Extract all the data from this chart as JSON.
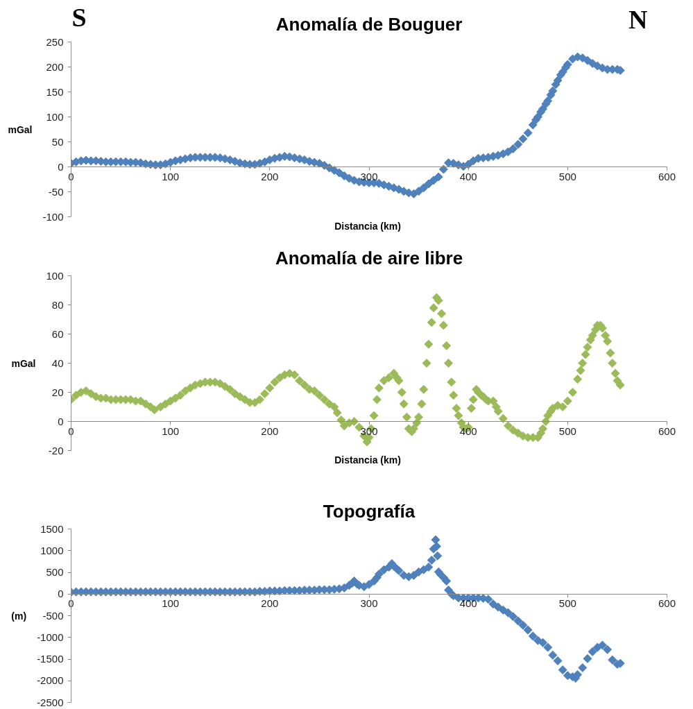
{
  "chart_data": [
    {
      "type": "scatter",
      "title": "Anomalía de Bouguer",
      "xlabel": "Distancia  (km)",
      "ylabel": "mGal",
      "annotations": [
        "S",
        "N"
      ],
      "marker": "diamond",
      "xlim": [
        0,
        600
      ],
      "xticks": [
        0,
        100,
        200,
        300,
        400,
        500,
        600
      ],
      "ylim": [
        -100,
        250
      ],
      "yticks": [
        -100,
        -50,
        0,
        50,
        100,
        150,
        200,
        250
      ],
      "x": [
        0,
        5,
        10,
        15,
        20,
        25,
        30,
        35,
        40,
        45,
        50,
        55,
        60,
        65,
        70,
        75,
        80,
        85,
        90,
        95,
        100,
        105,
        110,
        115,
        120,
        125,
        130,
        135,
        140,
        145,
        150,
        155,
        160,
        165,
        170,
        175,
        180,
        185,
        190,
        195,
        200,
        205,
        210,
        215,
        220,
        225,
        230,
        235,
        240,
        245,
        250,
        255,
        260,
        265,
        270,
        275,
        280,
        285,
        290,
        295,
        300,
        305,
        310,
        315,
        320,
        325,
        330,
        335,
        340,
        345,
        350,
        355,
        360,
        365,
        370,
        375,
        380,
        385,
        390,
        395,
        400,
        405,
        410,
        415,
        420,
        425,
        430,
        435,
        440,
        445,
        450,
        455,
        460,
        465,
        468,
        470,
        473,
        475,
        478,
        480,
        483,
        485,
        488,
        490,
        493,
        495,
        498,
        500,
        505,
        510,
        515,
        520,
        525,
        530,
        535,
        540,
        545,
        550,
        553
      ],
      "series": [
        {
          "color": "#4f81bd",
          "values": [
            7,
            10,
            12,
            13,
            12,
            12,
            11,
            10,
            10,
            10,
            10,
            10,
            9,
            9,
            8,
            6,
            5,
            4,
            4,
            6,
            9,
            12,
            14,
            16,
            18,
            19,
            19,
            19,
            19,
            19,
            18,
            16,
            14,
            11,
            8,
            6,
            5,
            5,
            7,
            10,
            14,
            17,
            19,
            21,
            20,
            18,
            16,
            14,
            11,
            9,
            7,
            3,
            -2,
            -7,
            -12,
            -18,
            -23,
            -27,
            -30,
            -31,
            -32,
            -32,
            -33,
            -36,
            -39,
            -42,
            -45,
            -49,
            -52,
            -54,
            -49,
            -42,
            -34,
            -27,
            -20,
            -5,
            8,
            7,
            4,
            1,
            5,
            12,
            17,
            18,
            19,
            21,
            23,
            26,
            30,
            36,
            45,
            56,
            68,
            84,
            94,
            100,
            110,
            116,
            126,
            132,
            144,
            152,
            165,
            173,
            184,
            190,
            199,
            205,
            216,
            220,
            218,
            213,
            207,
            202,
            198,
            195,
            195,
            195,
            193
          ]
        }
      ]
    },
    {
      "type": "scatter",
      "title": "Anomalía de aire libre",
      "xlabel": "Distancia  (km)",
      "ylabel": "mGal",
      "marker": "diamond",
      "xlim": [
        0,
        600
      ],
      "xticks": [
        0,
        100,
        200,
        300,
        400,
        500,
        600
      ],
      "ylim": [
        -20,
        100
      ],
      "yticks": [
        -20,
        0,
        20,
        40,
        60,
        80,
        100
      ],
      "x": [
        0,
        5,
        10,
        15,
        20,
        25,
        30,
        35,
        40,
        45,
        50,
        55,
        60,
        65,
        70,
        75,
        80,
        84,
        90,
        95,
        100,
        105,
        110,
        115,
        120,
        125,
        130,
        135,
        140,
        145,
        150,
        155,
        160,
        165,
        170,
        175,
        180,
        185,
        190,
        195,
        200,
        205,
        210,
        215,
        220,
        225,
        230,
        235,
        240,
        245,
        250,
        255,
        260,
        265,
        268,
        272,
        275,
        280,
        285,
        290,
        295,
        298,
        300,
        302,
        305,
        308,
        310,
        315,
        320,
        325,
        328,
        330,
        333,
        335,
        338,
        340,
        343,
        345,
        348,
        350,
        353,
        355,
        358,
        360,
        363,
        365,
        368,
        370,
        373,
        375,
        378,
        380,
        383,
        385,
        388,
        390,
        393,
        395,
        398,
        400,
        403,
        405,
        408,
        410,
        413,
        415,
        418,
        420,
        425,
        428,
        430,
        435,
        440,
        445,
        450,
        455,
        460,
        465,
        470,
        473,
        475,
        478,
        480,
        483,
        485,
        490,
        495,
        500,
        505,
        510,
        513,
        515,
        518,
        520,
        523,
        525,
        528,
        530,
        533,
        535,
        538,
        540,
        543,
        545,
        548,
        550,
        553
      ],
      "series": [
        {
          "color": "#9bbb59",
          "values": [
            15,
            18,
            20,
            21,
            19,
            17,
            16,
            16,
            15,
            15,
            15,
            15,
            15,
            14,
            14,
            12,
            10,
            8,
            10,
            12,
            14,
            16,
            18,
            21,
            23,
            25,
            26,
            27,
            27,
            27,
            26,
            24,
            22,
            19,
            17,
            15,
            13,
            13,
            15,
            19,
            23,
            27,
            30,
            32,
            33,
            32,
            28,
            25,
            22,
            21,
            18,
            15,
            12,
            10,
            6,
            1,
            -3,
            -1,
            0,
            -4,
            -10,
            -14,
            -11,
            -5,
            4,
            15,
            23,
            28,
            30,
            33,
            30,
            28,
            20,
            12,
            3,
            -5,
            -7,
            -5,
            -1,
            3,
            12,
            22,
            40,
            53,
            68,
            78,
            85,
            83,
            74,
            66,
            52,
            40,
            27,
            18,
            9,
            4,
            -1,
            -4,
            -5,
            -4,
            9,
            15,
            22,
            20,
            18,
            17,
            15,
            14,
            14,
            10,
            7,
            2,
            -3,
            -6,
            -8,
            -10,
            -11,
            -11,
            -11,
            -8,
            -5,
            0,
            4,
            7,
            9,
            11,
            10,
            14,
            20,
            29,
            35,
            40,
            46,
            51,
            56,
            59,
            63,
            66,
            66,
            64,
            59,
            55,
            47,
            40,
            33,
            28,
            25
          ]
        }
      ]
    },
    {
      "type": "scatter",
      "title": "Topografía",
      "ylabel": "(m)",
      "marker": "diamond",
      "xlim": [
        0,
        600
      ],
      "xticks": [
        0,
        100,
        200,
        300,
        400,
        500,
        600
      ],
      "ylim": [
        -2500,
        1500
      ],
      "yticks": [
        -2500,
        -2000,
        -1500,
        -1000,
        -500,
        0,
        500,
        1000,
        1500
      ],
      "x": [
        0,
        5,
        10,
        15,
        20,
        25,
        30,
        35,
        40,
        45,
        50,
        55,
        60,
        65,
        70,
        75,
        80,
        85,
        90,
        95,
        100,
        105,
        110,
        115,
        120,
        125,
        130,
        135,
        140,
        145,
        150,
        155,
        160,
        165,
        170,
        175,
        180,
        185,
        190,
        195,
        200,
        205,
        210,
        215,
        220,
        225,
        230,
        235,
        240,
        245,
        250,
        255,
        260,
        265,
        270,
        275,
        280,
        283,
        285,
        288,
        290,
        295,
        300,
        305,
        308,
        310,
        315,
        320,
        323,
        325,
        328,
        330,
        335,
        340,
        345,
        350,
        355,
        360,
        363,
        365,
        367,
        368,
        369,
        370,
        372,
        375,
        378,
        380,
        383,
        385,
        390,
        395,
        400,
        405,
        410,
        415,
        420,
        425,
        430,
        435,
        440,
        445,
        450,
        455,
        460,
        465,
        470,
        475,
        480,
        485,
        490,
        495,
        500,
        505,
        508,
        510,
        515,
        520,
        525,
        530,
        535,
        540,
        545,
        550,
        553
      ],
      "series": [
        {
          "color": "#4f81bd",
          "values": [
            40,
            50,
            50,
            50,
            50,
            50,
            50,
            50,
            50,
            50,
            50,
            50,
            50,
            50,
            50,
            50,
            50,
            50,
            50,
            50,
            50,
            50,
            50,
            50,
            50,
            50,
            50,
            50,
            50,
            50,
            50,
            50,
            50,
            50,
            50,
            50,
            50,
            50,
            60,
            60,
            70,
            70,
            70,
            80,
            80,
            80,
            80,
            90,
            90,
            90,
            100,
            100,
            100,
            110,
            120,
            140,
            200,
            250,
            300,
            230,
            200,
            170,
            220,
            300,
            380,
            460,
            560,
            620,
            700,
            640,
            580,
            540,
            430,
            400,
            430,
            510,
            560,
            620,
            780,
            1040,
            1250,
            1100,
            880,
            510,
            450,
            380,
            300,
            90,
            0,
            -40,
            -90,
            -90,
            -90,
            -90,
            -90,
            -100,
            -120,
            -230,
            -300,
            -370,
            -430,
            -520,
            -620,
            -720,
            -830,
            -970,
            -1070,
            -1120,
            -1230,
            -1410,
            -1540,
            -1750,
            -1880,
            -1910,
            -1940,
            -1860,
            -1700,
            -1490,
            -1330,
            -1230,
            -1180,
            -1280,
            -1520,
            -1620,
            -1600
          ]
        }
      ]
    }
  ]
}
